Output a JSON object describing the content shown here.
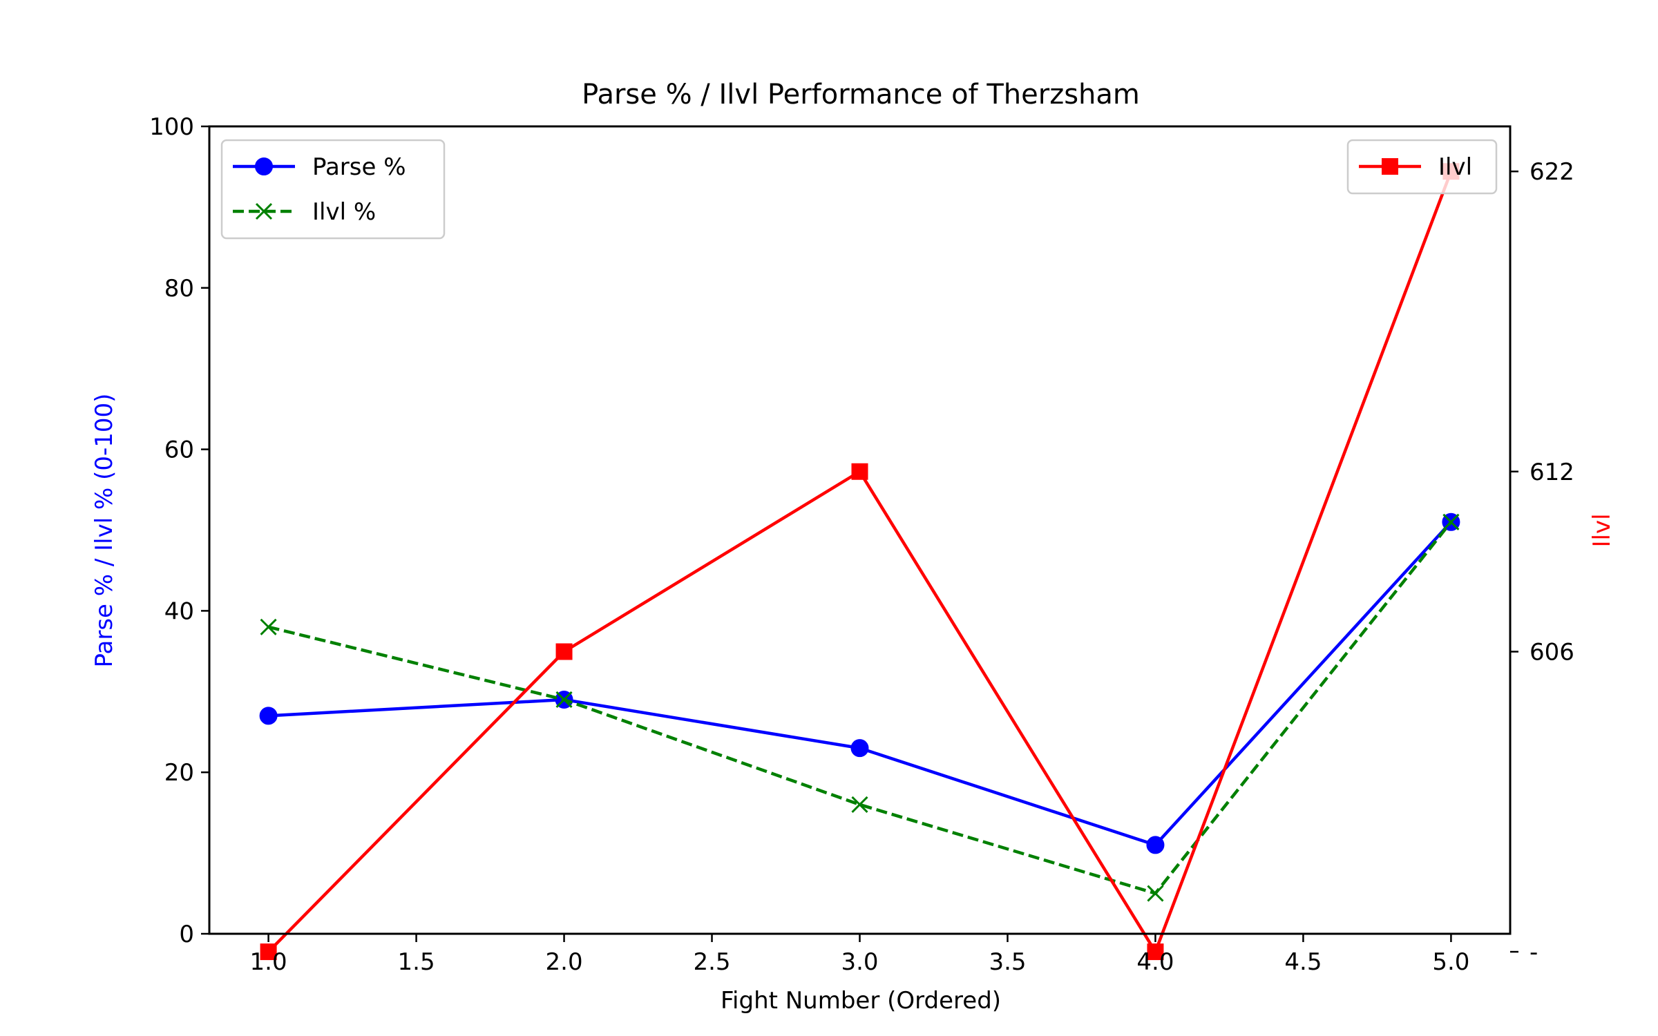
{
  "chart_data": {
    "type": "line",
    "title": "Parse % / Ilvl Performance of Therzsham",
    "xlabel": "Fight Number (Ordered)",
    "ylabel": "Parse % / Ilvl % (0-100)",
    "ylabel_right": "Ilvl",
    "xlim": [
      0.8,
      5.2
    ],
    "ylim": [
      0,
      100
    ],
    "ylim_right": [
      596.6,
      623.5
    ],
    "x_ticks": [
      "1.0",
      "1.5",
      "2.0",
      "2.5",
      "3.0",
      "3.5",
      "4.0",
      "4.5",
      "5.0"
    ],
    "y_ticks": [
      "0",
      "20",
      "40",
      "60",
      "80",
      "100"
    ],
    "y_right_ticks": [
      {
        "value": 622,
        "label": "622"
      },
      {
        "value": 612,
        "label": "612"
      },
      {
        "value": 606,
        "label": "606"
      },
      {
        "value": 596,
        "label": "-"
      }
    ],
    "grid": false,
    "legend_left_placement": "top-left",
    "legend_right_placement": "top-right",
    "x": [
      1,
      2,
      3,
      4,
      5
    ],
    "series": [
      {
        "name": "Parse %",
        "axis": "left",
        "values": [
          27,
          29,
          23,
          11,
          51
        ],
        "color": "#0000ff",
        "marker": "circle",
        "linestyle": "solid"
      },
      {
        "name": "Ilvl %",
        "axis": "left",
        "values": [
          38,
          29,
          16,
          5,
          51
        ],
        "color": "#008000",
        "marker": "x",
        "linestyle": "dashed"
      },
      {
        "name": "Ilvl",
        "axis": "right",
        "values": [
          596,
          606,
          612,
          596,
          622
        ],
        "color": "#ff0000",
        "marker": "square",
        "linestyle": "solid"
      }
    ],
    "colors": {
      "left_axis_label": "#0000ff",
      "right_axis_label": "#ff0000",
      "axes": "#000000"
    }
  }
}
